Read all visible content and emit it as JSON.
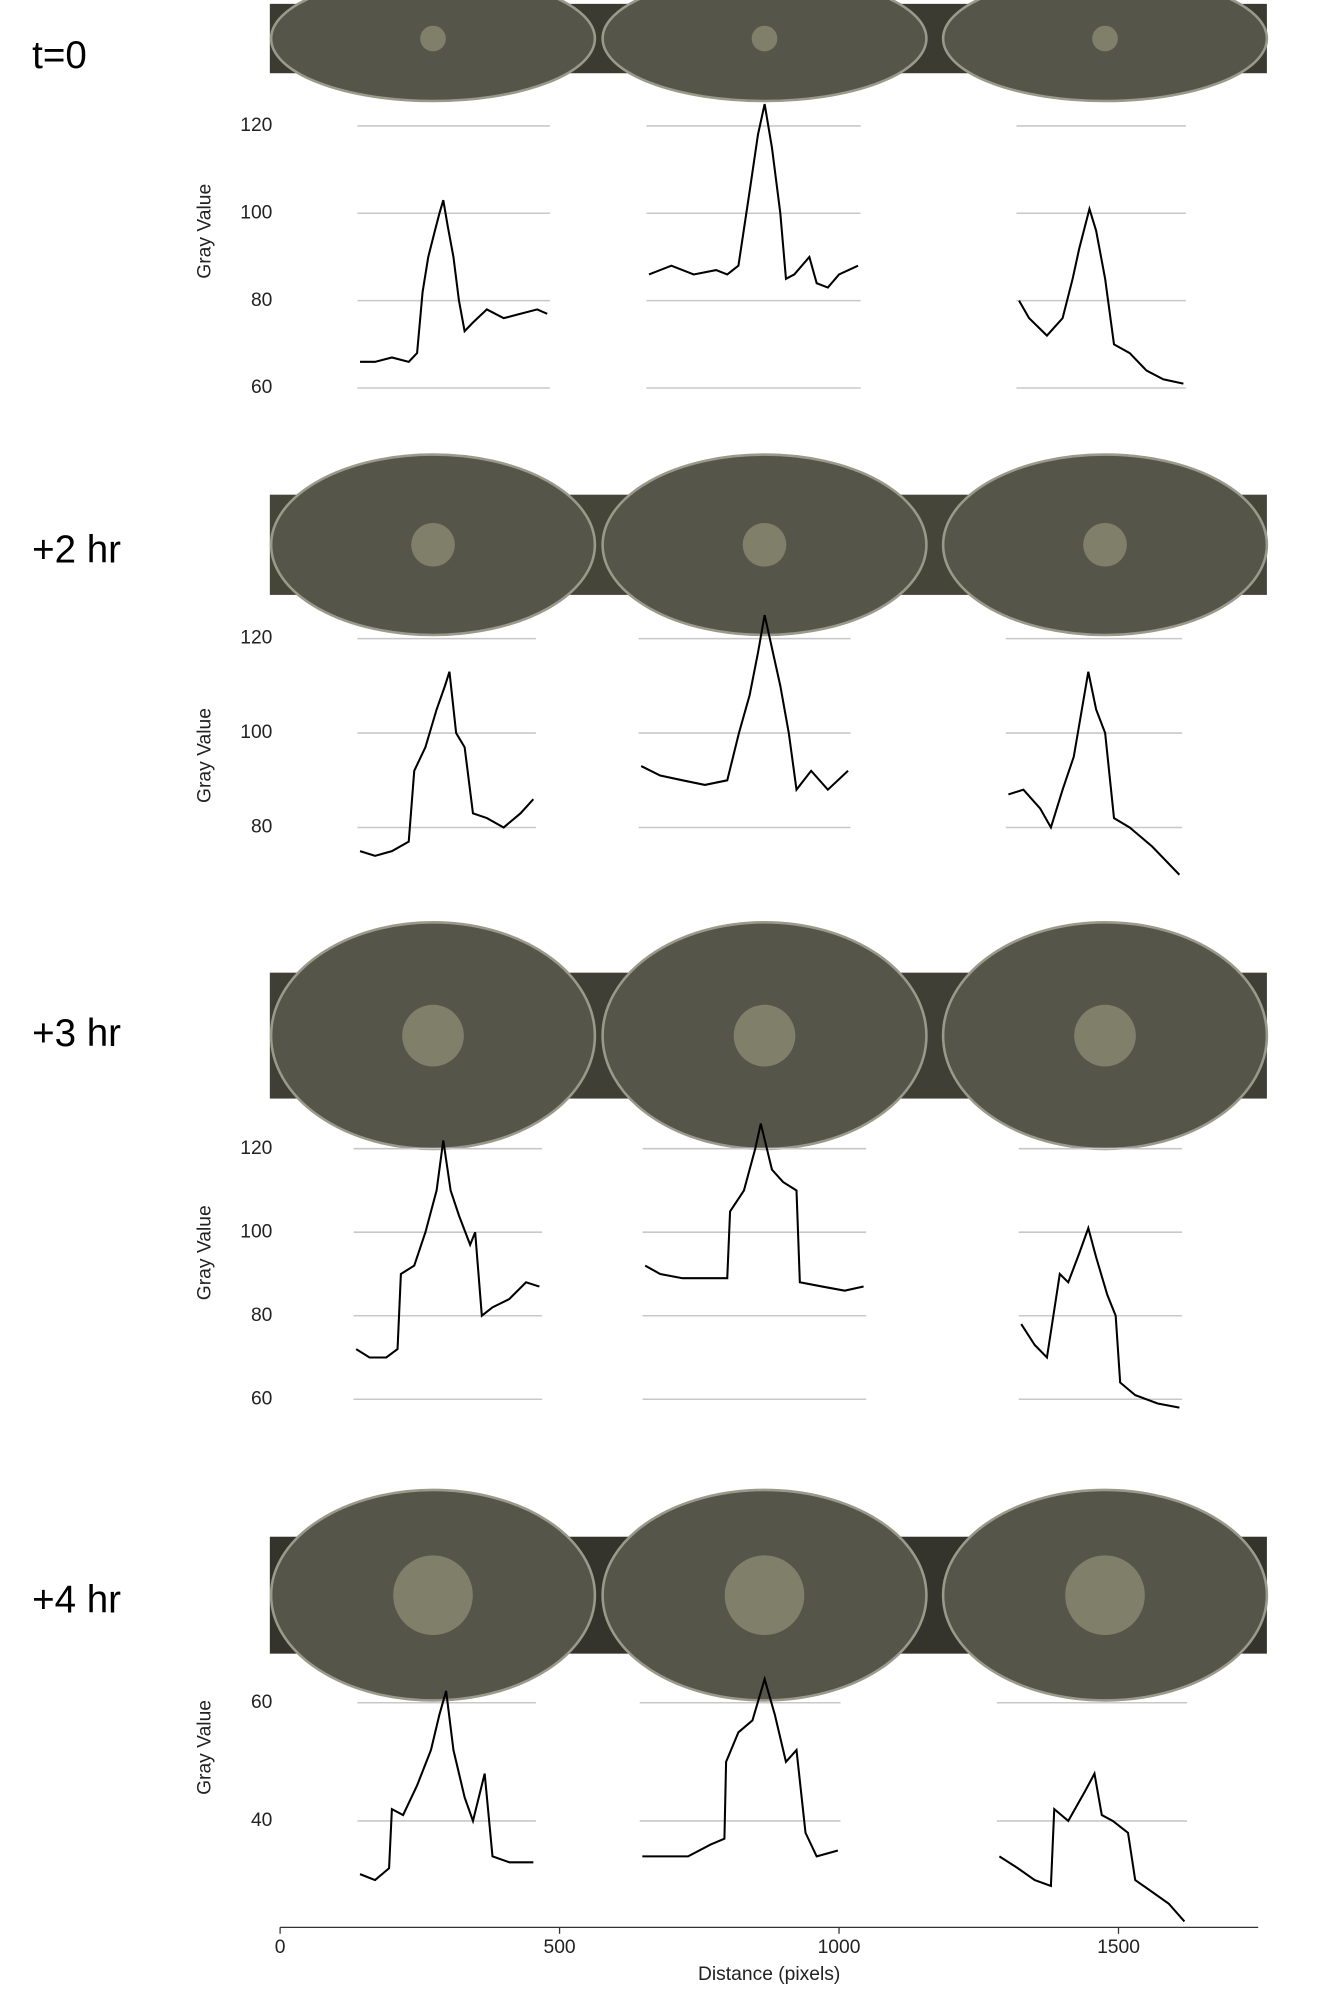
{
  "chart_data": [
    {
      "type": "line",
      "label": "t=0",
      "ylabel": "Gray Value",
      "ylim": [
        56,
        130
      ],
      "yticks": [
        60,
        80,
        100,
        120
      ],
      "series": [
        {
          "color": "#000000",
          "x": [
            143,
            170,
            200,
            230,
            245,
            255,
            265,
            275,
            285,
            292,
            300,
            310,
            320,
            330,
            345,
            370,
            400,
            430,
            460,
            478
          ],
          "values": [
            66,
            66,
            67,
            66,
            68,
            82,
            90,
            95,
            100,
            103,
            97,
            90,
            80,
            73,
            75,
            78,
            76,
            77,
            78,
            77
          ]
        },
        {
          "color": "#000000",
          "x": [
            660,
            700,
            740,
            780,
            800,
            820,
            840,
            855,
            867,
            880,
            895,
            905,
            920,
            947,
            960,
            980,
            1000,
            1034
          ],
          "values": [
            86,
            88,
            86,
            87,
            86,
            88,
            105,
            118,
            125,
            115,
            100,
            85,
            86,
            90,
            84,
            83,
            86,
            88
          ]
        },
        {
          "color": "#000000",
          "x": [
            1322,
            1340,
            1372,
            1400,
            1418,
            1430,
            1448,
            1460,
            1476,
            1492,
            1520,
            1550,
            1580,
            1616
          ],
          "values": [
            80,
            76,
            72,
            76,
            85,
            92,
            101,
            96,
            85,
            70,
            68,
            64,
            62,
            61
          ]
        }
      ]
    },
    {
      "type": "line",
      "label": "+2 hr",
      "ylabel": "Gray Value",
      "ylim": [
        70,
        126
      ],
      "yticks": [
        80,
        100,
        120
      ],
      "series": [
        {
          "color": "#000000",
          "x": [
            143,
            170,
            200,
            230,
            240,
            260,
            280,
            295,
            303,
            315,
            330,
            345,
            370,
            400,
            430,
            453
          ],
          "values": [
            75,
            74,
            75,
            77,
            92,
            97,
            105,
            110,
            113,
            100,
            97,
            83,
            82,
            80,
            83,
            86
          ]
        },
        {
          "color": "#000000",
          "x": [
            646,
            680,
            720,
            760,
            800,
            821,
            840,
            855,
            867,
            880,
            895,
            910,
            924,
            950,
            980,
            1016
          ],
          "values": [
            93,
            91,
            90,
            89,
            90,
            100,
            108,
            117,
            125,
            118,
            110,
            100,
            88,
            92,
            88,
            92
          ]
        },
        {
          "color": "#000000",
          "x": [
            1303,
            1330,
            1360,
            1379,
            1400,
            1420,
            1446,
            1460,
            1476,
            1492,
            1520,
            1560,
            1609
          ],
          "values": [
            87,
            88,
            84,
            80,
            88,
            95,
            113,
            105,
            100,
            82,
            80,
            76,
            70
          ]
        }
      ]
    },
    {
      "type": "line",
      "label": "+3 hr",
      "ylabel": "Gray Value",
      "ylim": [
        56,
        128
      ],
      "yticks": [
        60,
        80,
        100,
        120
      ],
      "series": [
        {
          "color": "#000000",
          "x": [
            136,
            160,
            190,
            210,
            216,
            240,
            260,
            280,
            292,
            305,
            320,
            340,
            349,
            361,
            380,
            410,
            440,
            464
          ],
          "values": [
            72,
            70,
            70,
            72,
            90,
            92,
            100,
            110,
            122,
            110,
            104,
            97,
            100,
            80,
            82,
            84,
            88,
            87
          ]
        },
        {
          "color": "#000000",
          "x": [
            653,
            680,
            720,
            760,
            800,
            805,
            830,
            850,
            860,
            880,
            900,
            924,
            930,
            970,
            1010,
            1044
          ],
          "values": [
            92,
            90,
            89,
            89,
            89,
            105,
            110,
            120,
            126,
            115,
            112,
            110,
            88,
            87,
            86,
            87
          ]
        },
        {
          "color": "#000000",
          "x": [
            1326,
            1350,
            1372,
            1395,
            1410,
            1430,
            1446,
            1460,
            1480,
            1495,
            1503,
            1530,
            1570,
            1609
          ],
          "values": [
            78,
            73,
            70,
            90,
            88,
            95,
            101,
            94,
            85,
            80,
            64,
            61,
            59,
            58
          ]
        }
      ]
    },
    {
      "type": "line",
      "label": "+4 hr",
      "ylabel": "Gray Value",
      "ylim": [
        22,
        66
      ],
      "yticks": [
        40,
        60
      ],
      "xlabel": "Distance (pixels)",
      "xlim": [
        0,
        1750
      ],
      "xticks": [
        0,
        500,
        1000,
        1500
      ],
      "series": [
        {
          "color": "#000000",
          "x": [
            143,
            170,
            195,
            200,
            220,
            245,
            270,
            285,
            297,
            310,
            330,
            345,
            366,
            380,
            410,
            453
          ],
          "values": [
            31,
            30,
            32,
            42,
            41,
            46,
            52,
            58,
            62,
            52,
            44,
            40,
            48,
            34,
            33,
            33
          ]
        },
        {
          "color": "#000000",
          "x": [
            648,
            690,
            730,
            770,
            795,
            798,
            820,
            845,
            867,
            885,
            905,
            924,
            940,
            960,
            998
          ],
          "values": [
            34,
            34,
            34,
            36,
            37,
            50,
            55,
            57,
            64,
            58,
            50,
            52,
            38,
            34,
            35
          ]
        },
        {
          "color": "#000000",
          "x": [
            1287,
            1320,
            1350,
            1379,
            1385,
            1410,
            1440,
            1457,
            1470,
            1490,
            1517,
            1530,
            1560,
            1590,
            1618
          ],
          "values": [
            34,
            32,
            30,
            29,
            42,
            40,
            45,
            48,
            41,
            40,
            38,
            30,
            28,
            26,
            23
          ]
        }
      ]
    }
  ]
}
